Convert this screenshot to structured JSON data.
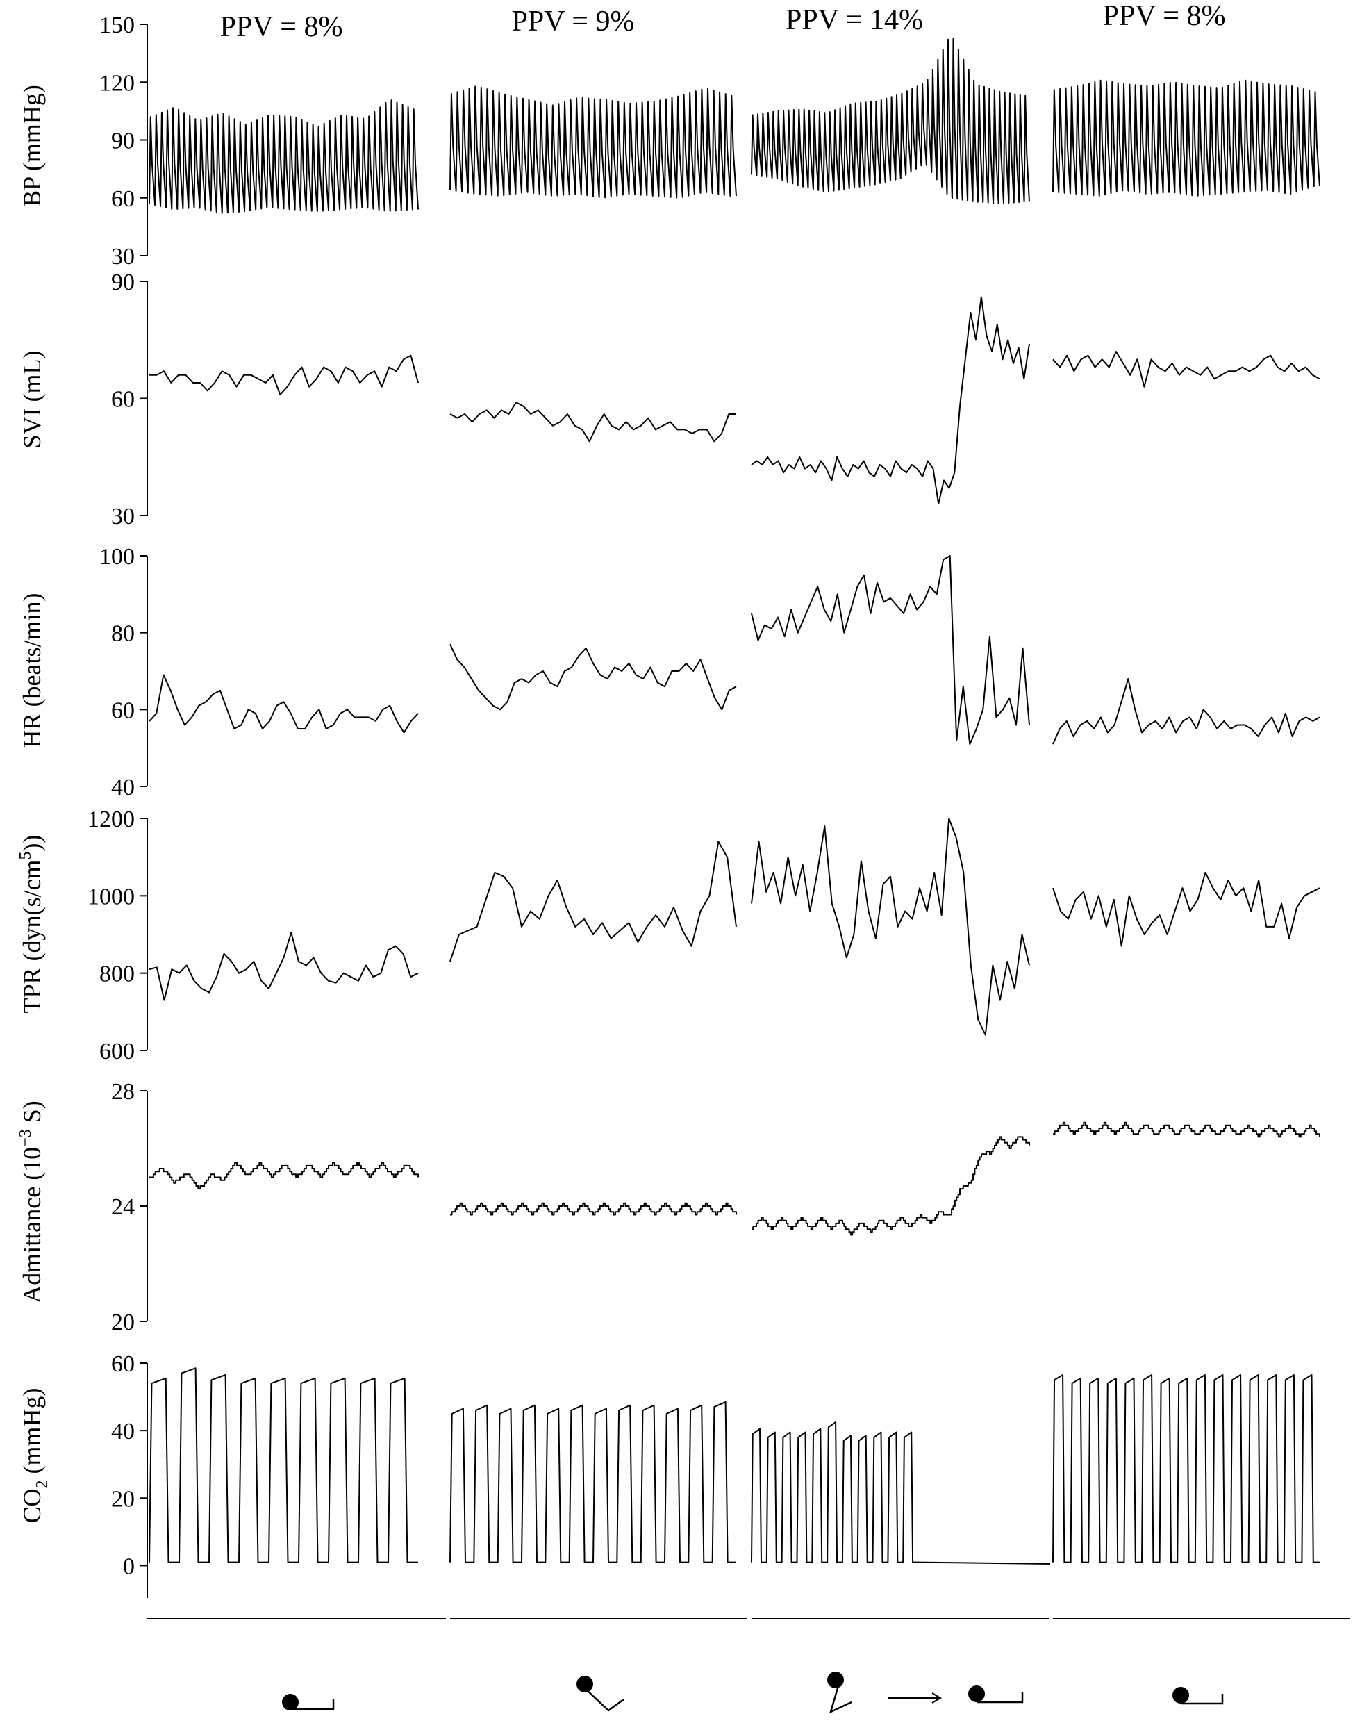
{
  "chart_data": {
    "type": "line",
    "conditions": [
      {
        "ppv_label": "PPV = 8%",
        "posture": "supine"
      },
      {
        "ppv_label": "PPV = 9%",
        "posture": "legs raised"
      },
      {
        "ppv_label": "PPV = 14%",
        "posture": "sitting, then supine"
      },
      {
        "ppv_label": "PPV = 8%",
        "posture": "supine"
      }
    ],
    "panels": [
      {
        "id": "bp",
        "ylabel": "BP (mmHg)",
        "ylim": [
          30,
          150
        ],
        "ticks": [
          {
            "value": 30,
            "label": "30"
          },
          {
            "value": 60,
            "label": "60"
          },
          {
            "value": 90,
            "label": "90"
          },
          {
            "value": 120,
            "label": "120"
          },
          {
            "value": 150,
            "label": "150"
          }
        ],
        "series": [
          {
            "kind": "pulse",
            "beats": 48,
            "lo": [
              57,
              54,
              55,
              52,
              53,
              55,
              54,
              53,
              54,
              55,
              53,
              54
            ],
            "hi": [
              102,
              107,
              100,
              104,
              98,
              103,
              102,
              97,
              103,
              101,
              111,
              106
            ]
          },
          {
            "kind": "pulse",
            "beats": 48,
            "lo": [
              64,
              62,
              61,
              63,
              61,
              62,
              60,
              62,
              61,
              60,
              63,
              61
            ],
            "hi": [
              114,
              118,
              114,
              111,
              108,
              112,
              111,
              109,
              110,
              113,
              117,
              113
            ]
          },
          {
            "kind": "pulse",
            "beats": 54,
            "lo": [
              72,
              70,
              66,
              63,
              65,
              67,
              70,
              78,
              60,
              58,
              57,
              58
            ],
            "hi": [
              103,
              105,
              106,
              104,
              109,
              110,
              114,
              120,
              145,
              119,
              115,
              113
            ]
          },
          {
            "kind": "pulse",
            "beats": 46,
            "lo": [
              63,
              62,
              61,
              64,
              62,
              63,
              61,
              62,
              63,
              64,
              62,
              66
            ],
            "hi": [
              116,
              118,
              121,
              119,
              118,
              120,
              118,
              117,
              121,
              119,
              118,
              115
            ]
          }
        ]
      },
      {
        "id": "svi",
        "ylabel": "SVI (mL)",
        "ylim": [
          30,
          90
        ],
        "ticks": [
          {
            "value": 30,
            "label": "30"
          },
          {
            "value": 60,
            "label": "60"
          },
          {
            "value": 90,
            "label": "90"
          }
        ],
        "series": [
          {
            "kind": "line",
            "values": [
              66,
              66,
              67,
              64,
              66,
              66,
              64,
              64,
              62,
              64,
              67,
              66,
              63,
              66,
              66,
              65,
              64,
              66,
              61,
              63,
              66,
              68,
              63,
              65,
              68,
              67,
              64,
              68,
              67,
              64,
              66,
              67,
              63,
              68,
              67,
              70,
              71,
              64
            ]
          },
          {
            "kind": "line",
            "values": [
              56,
              55,
              56,
              54,
              56,
              57,
              55,
              57,
              56,
              59,
              58,
              56,
              57,
              55,
              53,
              54,
              56,
              53,
              52,
              49,
              53,
              56,
              53,
              52,
              54,
              52,
              53,
              55,
              52,
              53,
              54,
              52,
              52,
              51,
              52,
              52,
              49,
              51,
              56,
              56
            ]
          },
          {
            "kind": "line",
            "values": [
              43,
              44,
              43,
              45,
              43,
              44,
              41,
              43,
              42,
              45,
              42,
              43,
              41,
              44,
              42,
              39,
              45,
              42,
              40,
              43,
              42,
              44,
              41,
              40,
              43,
              42,
              40,
              44,
              42,
              41,
              43,
              42,
              40,
              44,
              42,
              33,
              39,
              37,
              41,
              58,
              70,
              82,
              75,
              86,
              76,
              72,
              79,
              70,
              75,
              69,
              73,
              65,
              74
            ]
          },
          {
            "kind": "line",
            "values": [
              70,
              68,
              71,
              67,
              70,
              71,
              68,
              70,
              68,
              72,
              69,
              66,
              70,
              63,
              70,
              68,
              67,
              69,
              66,
              68,
              67,
              66,
              68,
              65,
              66,
              67,
              67,
              68,
              67,
              68,
              70,
              71,
              68,
              67,
              69,
              67,
              68,
              66,
              65
            ]
          }
        ]
      },
      {
        "id": "hr",
        "ylabel": "HR (beats/min)",
        "ylim": [
          40,
          100
        ],
        "ticks": [
          {
            "value": 40,
            "label": "40"
          },
          {
            "value": 60,
            "label": "60"
          },
          {
            "value": 80,
            "label": "80"
          },
          {
            "value": 100,
            "label": "100"
          }
        ],
        "series": [
          {
            "kind": "line",
            "values": [
              57,
              59,
              69,
              65,
              60,
              56,
              58,
              61,
              62,
              64,
              65,
              60,
              55,
              56,
              60,
              59,
              55,
              57,
              61,
              62,
              59,
              55,
              55,
              58,
              60,
              55,
              56,
              59,
              60,
              58,
              58,
              58,
              57,
              60,
              61,
              57,
              54,
              57,
              59
            ]
          },
          {
            "kind": "line",
            "values": [
              77,
              73,
              71,
              68,
              65,
              63,
              61,
              60,
              62,
              67,
              68,
              67,
              69,
              70,
              67,
              66,
              70,
              71,
              74,
              76,
              72,
              69,
              68,
              71,
              70,
              72,
              69,
              68,
              71,
              67,
              66,
              70,
              70,
              72,
              70,
              73,
              68,
              63,
              60,
              65,
              66
            ]
          },
          {
            "kind": "line",
            "values": [
              85,
              78,
              82,
              81,
              84,
              79,
              86,
              80,
              84,
              88,
              92,
              86,
              83,
              90,
              80,
              86,
              92,
              95,
              85,
              93,
              88,
              89,
              87,
              85,
              90,
              86,
              88,
              92,
              90,
              99,
              100,
              52,
              66,
              51,
              55,
              60,
              79,
              58,
              60,
              63,
              56,
              76,
              56
            ]
          },
          {
            "kind": "line",
            "values": [
              51,
              55,
              57,
              53,
              56,
              57,
              55,
              58,
              54,
              56,
              62,
              68,
              60,
              54,
              56,
              57,
              55,
              58,
              54,
              57,
              58,
              55,
              60,
              58,
              55,
              57,
              55,
              56,
              56,
              55,
              53,
              56,
              58,
              54,
              59,
              53,
              57,
              58,
              57,
              58
            ]
          }
        ]
      },
      {
        "id": "tpr",
        "ylabel": "TPR (dyn(s/cm5))",
        "ylim": [
          600,
          1200
        ],
        "ticks": [
          {
            "value": 600,
            "label": "600"
          },
          {
            "value": 800,
            "label": "800"
          },
          {
            "value": 1000,
            "label": "1000"
          },
          {
            "value": 1200,
            "label": "1200"
          }
        ],
        "series": [
          {
            "kind": "line",
            "values": [
              810,
              815,
              730,
              810,
              800,
              820,
              780,
              760,
              750,
              790,
              850,
              830,
              800,
              810,
              830,
              780,
              760,
              800,
              840,
              905,
              830,
              820,
              840,
              800,
              780,
              775,
              800,
              790,
              780,
              820,
              790,
              800,
              860,
              870,
              850,
              790,
              800
            ]
          },
          {
            "kind": "line",
            "values": [
              830,
              900,
              910,
              920,
              990,
              1060,
              1050,
              1020,
              920,
              960,
              940,
              1000,
              1040,
              970,
              920,
              940,
              900,
              930,
              890,
              910,
              930,
              880,
              920,
              950,
              920,
              970,
              910,
              870,
              960,
              1000,
              1140,
              1100,
              920
            ]
          },
          {
            "kind": "line",
            "values": [
              980,
              1140,
              1010,
              1060,
              980,
              1100,
              1000,
              1080,
              960,
              1060,
              1180,
              980,
              920,
              840,
              900,
              1090,
              960,
              890,
              1030,
              1050,
              920,
              960,
              940,
              1020,
              960,
              1060,
              950,
              1200,
              1150,
              1060,
              820,
              680,
              640,
              820,
              730,
              830,
              760,
              900,
              820
            ]
          },
          {
            "kind": "line",
            "values": [
              1020,
              960,
              940,
              990,
              1010,
              940,
              1000,
              920,
              990,
              870,
              1000,
              940,
              900,
              930,
              950,
              900,
              960,
              1020,
              960,
              990,
              1060,
              1020,
              990,
              1040,
              1000,
              1020,
              960,
              1040,
              920,
              920,
              980,
              890,
              970,
              1000,
              1010,
              1020
            ]
          }
        ]
      },
      {
        "id": "adm",
        "ylabel": "Admittance (10-3 S)",
        "ylim": [
          20,
          28
        ],
        "ticks": [
          {
            "value": 20,
            "label": "20"
          },
          {
            "value": 24,
            "label": "24"
          },
          {
            "value": 28,
            "label": "28"
          }
        ],
        "series": [
          {
            "kind": "stairs",
            "points": [
              [
                0,
                25.2
              ],
              [
                4,
                25.0
              ],
              [
                8,
                24.8
              ],
              [
                13,
                25.3
              ],
              [
                22,
                25.2
              ],
              [
                28,
                25.3
              ],
              [
                40,
                25.2
              ]
            ],
            "amp": 0.22,
            "cycles": 11
          },
          {
            "kind": "stairs",
            "points": [
              [
                0,
                23.9
              ],
              [
                40,
                23.9
              ]
            ],
            "amp": 0.18,
            "cycles": 14
          },
          {
            "kind": "stairs",
            "points": [
              [
                0,
                23.4
              ],
              [
                12,
                23.4
              ],
              [
                14,
                23.2
              ],
              [
                24,
                23.5
              ],
              [
                28,
                23.7
              ],
              [
                30,
                24.4
              ],
              [
                32,
                25.2
              ],
              [
                34,
                26.0
              ],
              [
                36,
                26.2
              ],
              [
                40,
                26.3
              ]
            ],
            "amp": 0.18,
            "cycles": 14
          },
          {
            "kind": "stairs",
            "points": [
              [
                0,
                26.7
              ],
              [
                40,
                26.6
              ]
            ],
            "amp": 0.18,
            "cycles": 13
          }
        ]
      },
      {
        "id": "co2",
        "ylabel": "CO2 (mmHg)",
        "ylim": [
          -10,
          60
        ],
        "ticks": [
          {
            "value": 0,
            "label": "0"
          },
          {
            "value": 20,
            "label": "20"
          },
          {
            "value": 40,
            "label": "40"
          },
          {
            "value": 60,
            "label": "60"
          }
        ],
        "series": [
          {
            "kind": "capno",
            "peaks": [
              54,
              57,
              55,
              54,
              54,
              54,
              54,
              54,
              54
            ],
            "end": null
          },
          {
            "kind": "capno",
            "peaks": [
              45,
              46,
              45,
              46,
              45,
              46,
              45,
              46,
              46,
              45,
              46,
              47
            ],
            "end": null
          },
          {
            "kind": "capno",
            "peaks": [
              39,
              38,
              38,
              38,
              39,
              41,
              37,
              37,
              38,
              38,
              38
            ],
            "end": 0.6
          },
          {
            "kind": "capno",
            "peaks": [
              55,
              54,
              54,
              54,
              54,
              55,
              54,
              54,
              55,
              55,
              55,
              55,
              55,
              55,
              55
            ],
            "end": null
          }
        ]
      }
    ]
  }
}
